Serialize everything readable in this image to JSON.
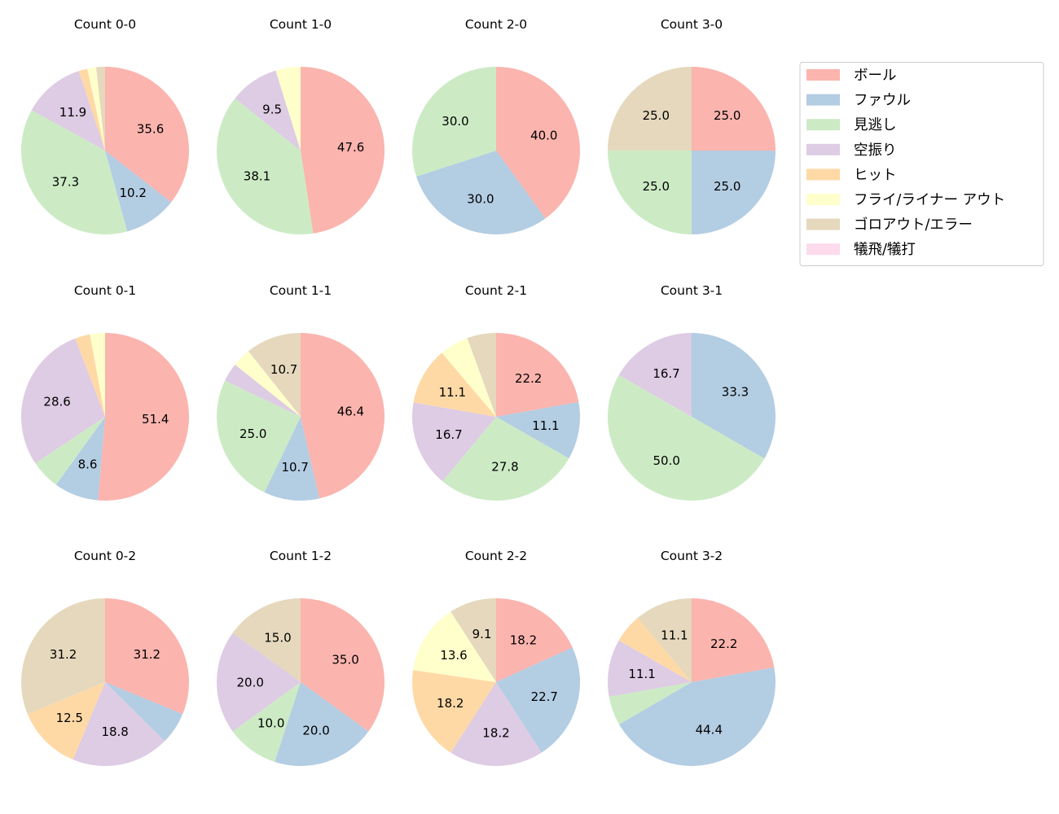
{
  "chart_data": {
    "type": "pie",
    "legend": {
      "placement": "top-right",
      "entries": [
        "ボール",
        "ファウル",
        "見逃し",
        "空振り",
        "ヒット",
        "フライ/ライナー アウト",
        "ゴロアウト/エラー",
        "犠飛/犠打"
      ]
    },
    "colors": [
      "#fbb4ae",
      "#b3cde3",
      "#ccebc5",
      "#decbe4",
      "#fed9a6",
      "#ffffcc",
      "#e5d8bd",
      "#fddaec"
    ],
    "start_angle": 90,
    "direction": "clockwise",
    "charts": [
      {
        "title": "Count 0-0",
        "values": [
          35.6,
          10.2,
          37.3,
          11.9,
          1.7,
          1.7,
          1.7,
          0
        ]
      },
      {
        "title": "Count 1-0",
        "values": [
          47.6,
          0,
          38.1,
          9.5,
          0,
          4.8,
          0,
          0
        ]
      },
      {
        "title": "Count 2-0",
        "values": [
          40.0,
          30.0,
          30.0,
          0,
          0,
          0,
          0,
          0
        ]
      },
      {
        "title": "Count 3-0",
        "values": [
          25.0,
          25.0,
          25.0,
          0,
          0,
          0,
          25.0,
          0
        ]
      },
      {
        "title": "Count 0-1",
        "values": [
          51.4,
          8.6,
          5.7,
          28.6,
          2.9,
          2.9,
          0,
          0
        ]
      },
      {
        "title": "Count 1-1",
        "values": [
          46.4,
          10.7,
          25.0,
          3.6,
          0,
          3.6,
          10.7,
          0
        ]
      },
      {
        "title": "Count 2-1",
        "values": [
          22.2,
          11.1,
          27.8,
          16.7,
          11.1,
          5.6,
          5.6,
          0
        ]
      },
      {
        "title": "Count 3-1",
        "values": [
          0,
          33.3,
          50.0,
          16.7,
          0,
          0,
          0,
          0
        ]
      },
      {
        "title": "Count 0-2",
        "values": [
          31.2,
          6.2,
          0,
          18.8,
          12.5,
          0,
          31.2,
          0
        ]
      },
      {
        "title": "Count 1-2",
        "values": [
          35.0,
          20.0,
          10.0,
          20.0,
          0,
          0,
          15.0,
          0
        ]
      },
      {
        "title": "Count 2-2",
        "values": [
          18.2,
          22.7,
          0,
          18.2,
          18.2,
          13.6,
          9.1,
          0
        ]
      },
      {
        "title": "Count 3-2",
        "values": [
          22.2,
          44.4,
          5.6,
          11.1,
          5.6,
          0,
          11.1,
          0
        ]
      }
    ]
  }
}
